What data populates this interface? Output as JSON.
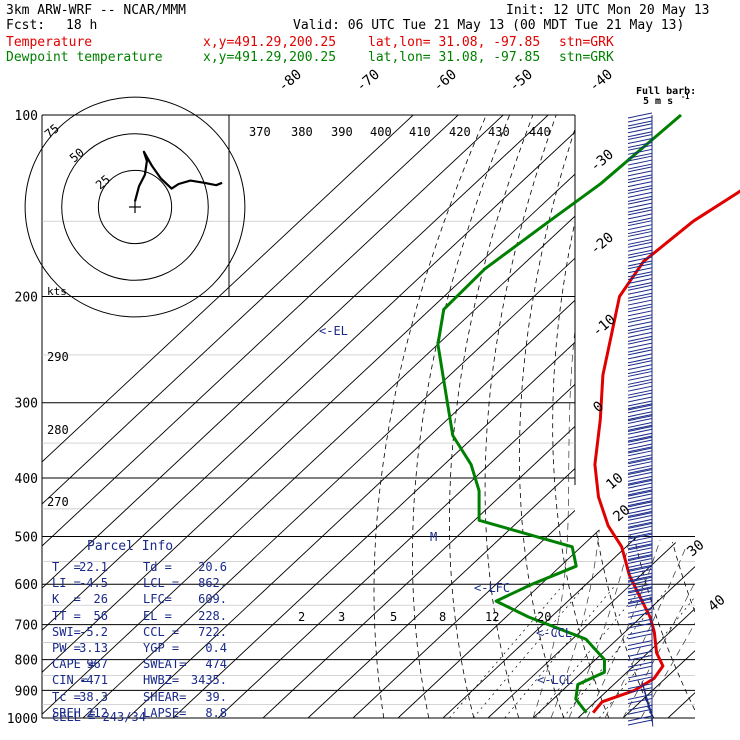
{
  "header": {
    "model": "3km ARW-WRF -- NCAR/MMM",
    "init": "Init: 12 UTC Mon 20 May 13",
    "fcst_label": "Fcst:",
    "fcst_value": "18 h",
    "valid": "Valid: 06 UTC Tue 21 May 13 (00 MDT Tue 21 May 13)",
    "temp_label": "Temperature",
    "dewp_label": "Dewpoint temperature",
    "xy": "x,y=491.29,200.25",
    "latlon": "lat,lon= 31.08, -97.85",
    "stn": "stn=GRK"
  },
  "colors": {
    "temperature": "#e00000",
    "dewpoint": "#008000",
    "parcel_info": "#1a2a8a",
    "wind_barbs": "#1a2a8a",
    "grid": "#000000"
  },
  "wind_legend": {
    "title": "Full barb:",
    "value": "5 m s",
    "exp": "-1"
  },
  "chart_data": {
    "type": "line",
    "xlabel": "",
    "ylabel": "",
    "y_scale": "log-pressure",
    "ylim": [
      1000,
      100
    ],
    "pressure_ticks": [
      100,
      200,
      300,
      400,
      500,
      600,
      700,
      800,
      900,
      1000
    ],
    "pressure_tick_labels": [
      "100",
      "200",
      "300",
      "400",
      "500",
      "600",
      "700",
      "800",
      "900",
      "1000"
    ],
    "isotherm_labels": [
      "-80",
      "-70",
      "-60",
      "-50",
      "-40",
      "-30",
      "-20",
      "-10",
      "0",
      "10",
      "20",
      "30",
      "40"
    ],
    "dry_adiabat_labels": [
      "370",
      "380",
      "390",
      "400",
      "410",
      "420",
      "430",
      "440",
      "290",
      "280",
      "270"
    ],
    "mixing_ratio_labels": [
      "2",
      "3",
      "5",
      "8",
      "12",
      "20"
    ],
    "series": [
      {
        "name": "Temperature",
        "points": [
          [
            100,
            -65.5
          ],
          [
            110,
            -65.8
          ],
          [
            125,
            -67.5
          ],
          [
            135,
            -69.5
          ],
          [
            150,
            -72.5
          ],
          [
            175,
            -74
          ],
          [
            200,
            -71
          ],
          [
            230,
            -64
          ],
          [
            270,
            -56
          ],
          [
            320,
            -46
          ],
          [
            380,
            -36.5
          ],
          [
            430,
            -28
          ],
          [
            480,
            -19
          ],
          [
            520,
            -11
          ],
          [
            580,
            -2.5
          ],
          [
            630,
            5
          ],
          [
            680,
            12
          ],
          [
            720,
            16.5
          ],
          [
            780,
            22
          ],
          [
            820,
            26.5
          ],
          [
            860,
            27.5
          ],
          [
            900,
            26
          ],
          [
            940,
            21.5
          ],
          [
            980,
            22.1
          ]
        ]
      },
      {
        "name": "Dewpoint temperature",
        "points": [
          [
            100,
            -100.5
          ],
          [
            130,
            -102
          ],
          [
            150,
            -104.5
          ],
          [
            180,
            -107.5
          ],
          [
            210,
            -107
          ],
          [
            240,
            -100
          ],
          [
            300,
            -84
          ],
          [
            340,
            -75
          ],
          [
            380,
            -64
          ],
          [
            420,
            -56
          ],
          [
            470,
            -49
          ],
          [
            520,
            -22
          ],
          [
            560,
            -16.5
          ],
          [
            600,
            -22
          ],
          [
            640,
            -26
          ],
          [
            680,
            -15
          ],
          [
            740,
            3
          ],
          [
            800,
            12
          ],
          [
            840,
            15
          ],
          [
            880,
            12
          ],
          [
            930,
            15
          ],
          [
            980,
            20.6
          ]
        ]
      }
    ],
    "annotations": [
      "<-EL",
      "M",
      "<-LFC",
      "<-CCL",
      "<-LCL"
    ],
    "wind_barbs": {
      "top_pressure": 100,
      "bottom_pressure": 1000,
      "count": 57,
      "full_barbs_low": 1,
      "full_barbs_mid": 3,
      "full_barbs_high": 2
    },
    "hodograph": {
      "rings_kts": [
        25,
        50,
        75
      ],
      "ring_labels": [
        "25",
        "50",
        "75"
      ],
      "speed_axis_label": "kts",
      "points_kts": [
        [
          0,
          5
        ],
        [
          4,
          18
        ],
        [
          10,
          28
        ],
        [
          12,
          40
        ],
        [
          9,
          48
        ],
        [
          17,
          36
        ],
        [
          26,
          25
        ],
        [
          37,
          16
        ],
        [
          44,
          20
        ],
        [
          56,
          23
        ],
        [
          70,
          21
        ],
        [
          82,
          19
        ],
        [
          88,
          21
        ]
      ]
    },
    "parcel_info": {
      "title": "Parcel Info",
      "rows": [
        [
          "T  =",
          "22.1",
          "Td =",
          "20.6"
        ],
        [
          "LI =",
          "-4.5",
          "LCL =",
          "862."
        ],
        [
          "K  =",
          "26",
          "LFC=",
          "609."
        ],
        [
          "TT =",
          "56",
          "EL =",
          "228."
        ],
        [
          "SWI=",
          "-5.2",
          "CCL =",
          "722."
        ],
        [
          "PW =",
          "3.13",
          "YGP =",
          "0.4"
        ],
        [
          "CAPE =",
          "967",
          "SWEAT=",
          "474"
        ],
        [
          "CIN =",
          "-471",
          "HWBZ=",
          "3435."
        ],
        [
          "Tc =",
          "38.3",
          "SHEAR=",
          "39."
        ],
        [
          "SREH =",
          "212",
          "LAPSE=",
          "8.8"
        ]
      ],
      "cell": "CELL = 243/34"
    }
  }
}
